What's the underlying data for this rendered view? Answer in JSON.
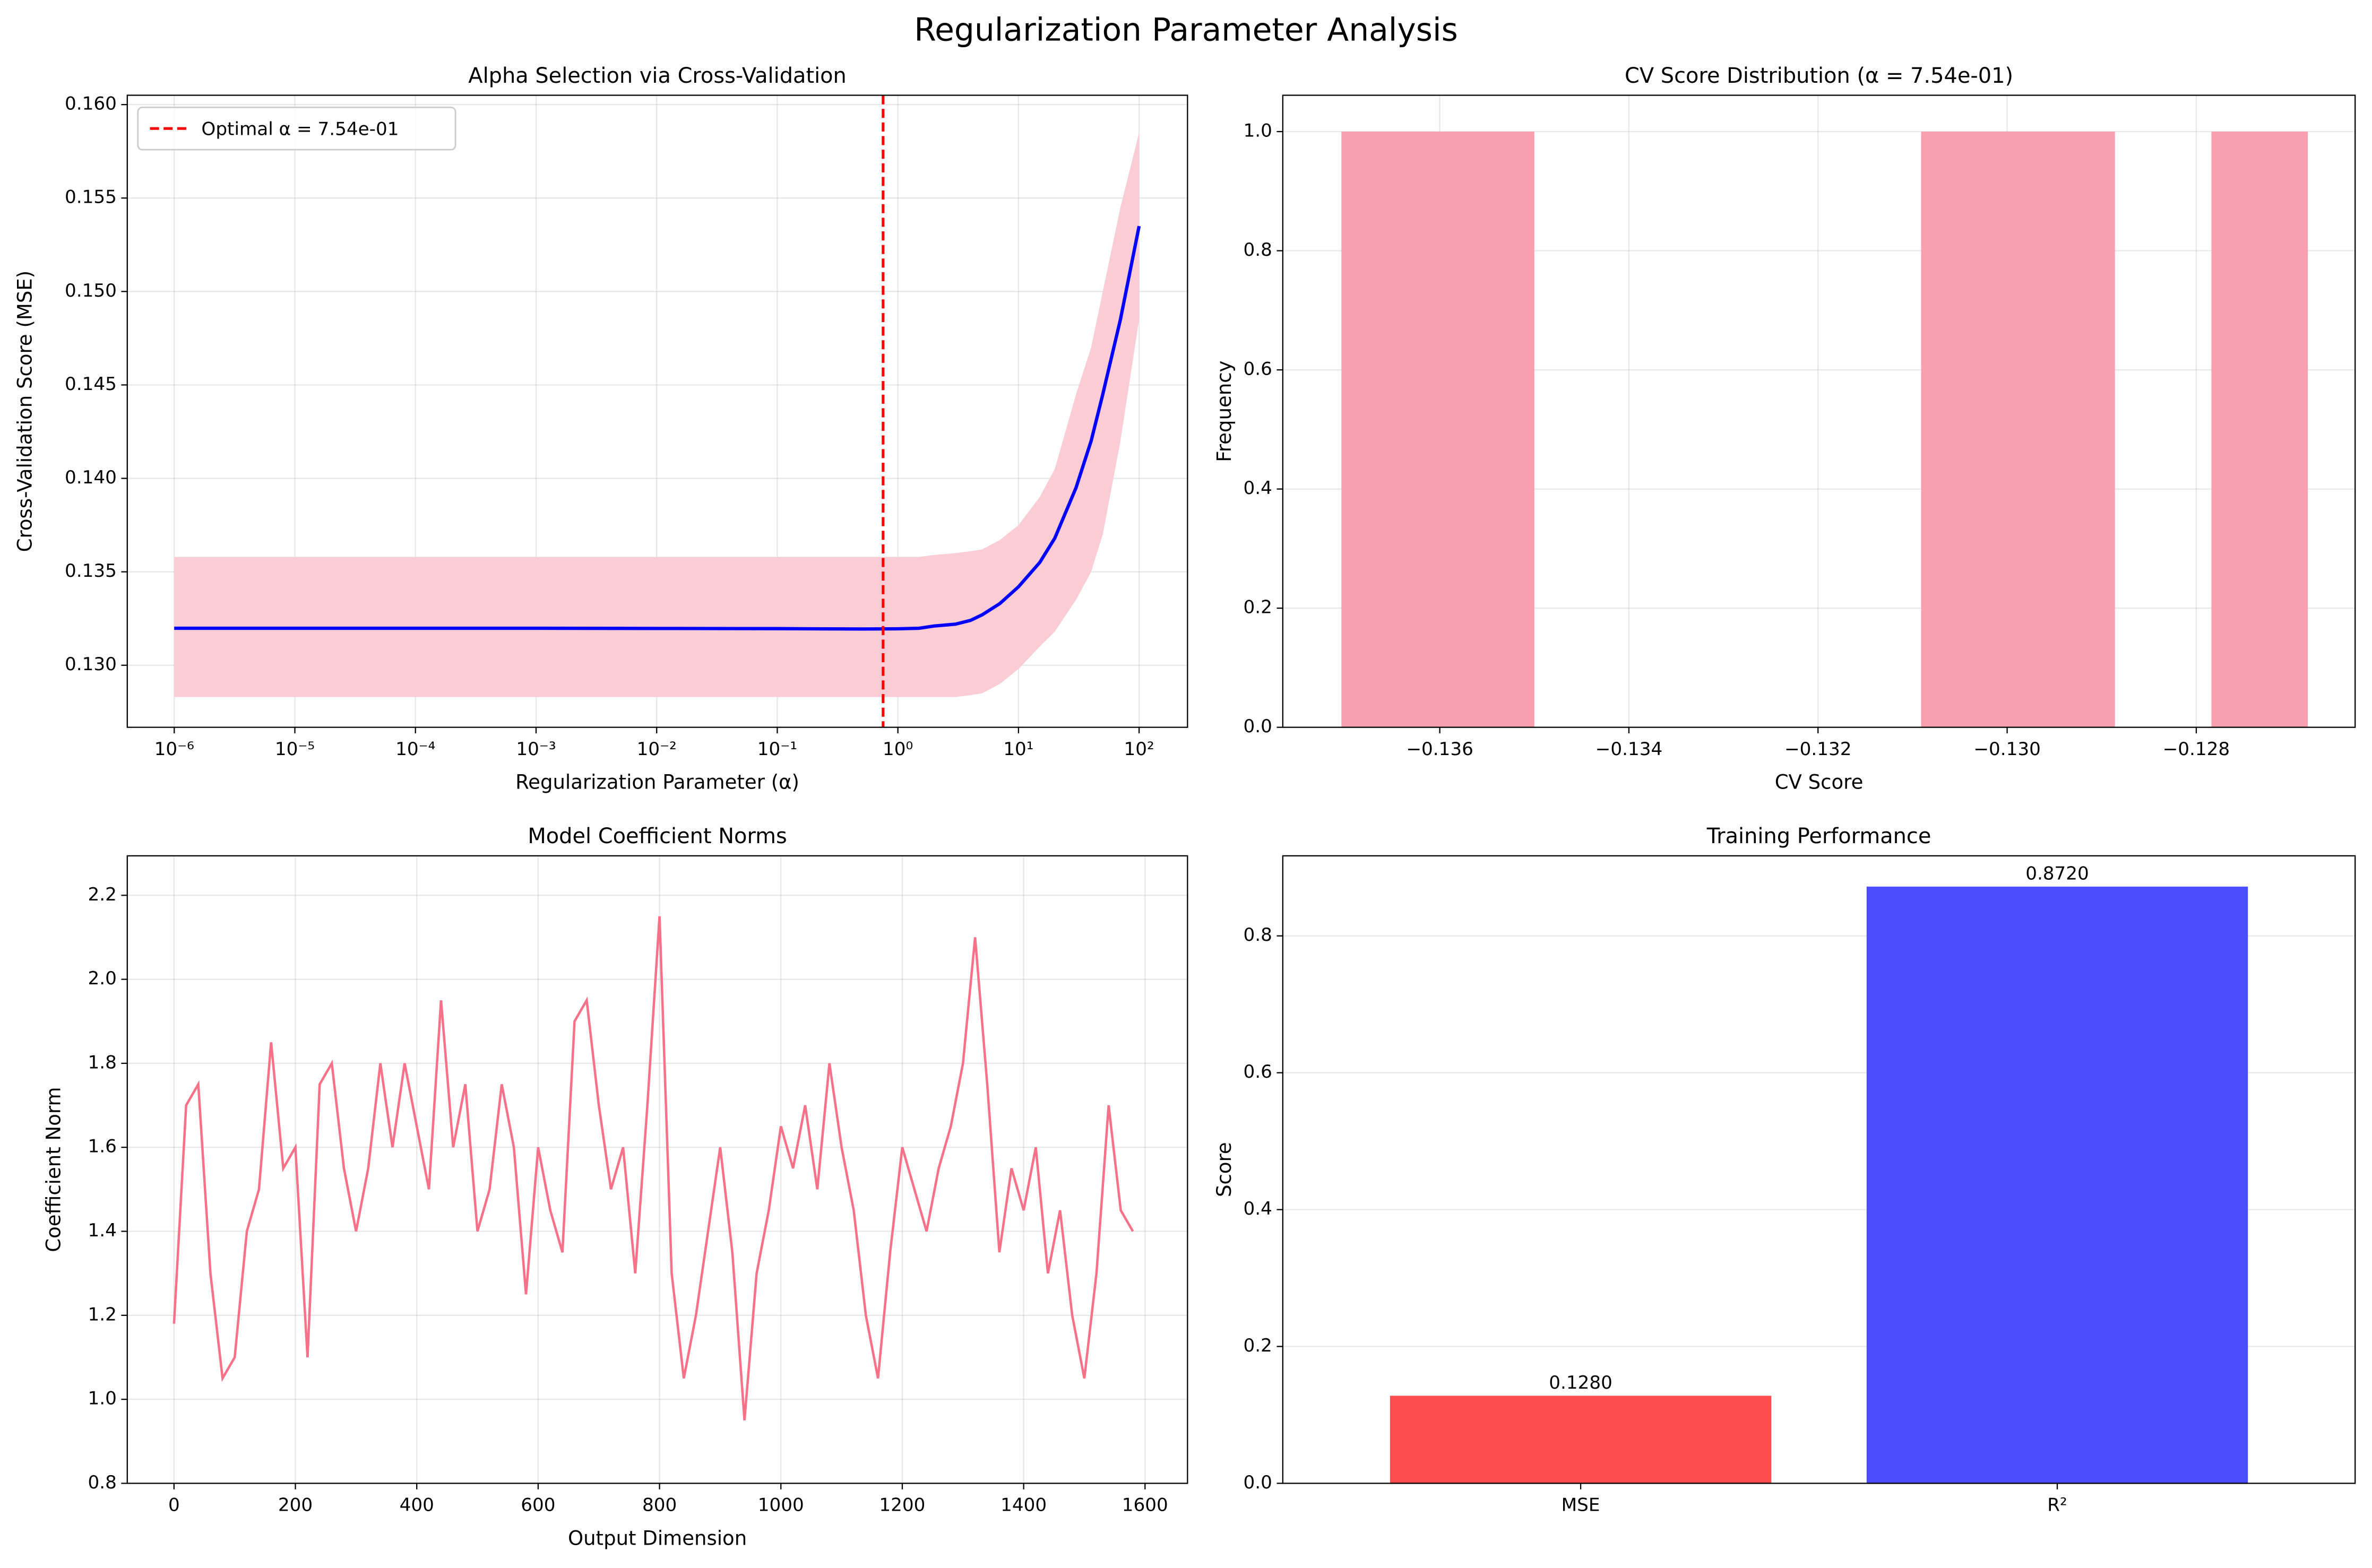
{
  "title": "Regularization Parameter Analysis",
  "chart_data": [
    {
      "type": "line",
      "title": "Alpha Selection via Cross-Validation",
      "xlabel": "Regularization Parameter (α)",
      "ylabel": "Cross-Validation Score (MSE)",
      "xscale": "log",
      "grid": true,
      "x": [
        1e-06,
        1e-05,
        0.0001,
        0.001,
        0.01,
        0.1,
        0.5,
        1,
        1.5,
        2,
        3,
        4,
        5,
        7,
        10,
        15,
        20,
        30,
        40,
        50,
        70,
        100
      ],
      "values": [
        0.13198,
        0.13198,
        0.13198,
        0.13198,
        0.13197,
        0.13196,
        0.13194,
        0.13195,
        0.13198,
        0.1321,
        0.1322,
        0.1324,
        0.1327,
        0.1333,
        0.1342,
        0.1355,
        0.1368,
        0.1395,
        0.142,
        0.1445,
        0.1485,
        0.1535
      ],
      "color": "#0000ff",
      "band": {
        "color": "#f9ccd6",
        "lower": [
          0.1283,
          0.1283,
          0.1283,
          0.1283,
          0.1283,
          0.1283,
          0.1283,
          0.1283,
          0.1283,
          0.1283,
          0.1283,
          0.1284,
          0.1285,
          0.129,
          0.1298,
          0.131,
          0.1318,
          0.1335,
          0.135,
          0.137,
          0.142,
          0.1485
        ],
        "upper": [
          0.1358,
          0.1358,
          0.1358,
          0.1358,
          0.1358,
          0.1358,
          0.1358,
          0.1358,
          0.1358,
          0.1359,
          0.136,
          0.1361,
          0.1362,
          0.1367,
          0.1375,
          0.139,
          0.1405,
          0.1445,
          0.147,
          0.15,
          0.1545,
          0.1585
        ]
      },
      "vline": {
        "x": 0.754,
        "label": "Optimal α = 7.54e-01",
        "color": "#ff0000"
      },
      "legend": "upper left",
      "xlim": [
        4.08e-07,
        252
      ],
      "ylim": [
        0.12668,
        0.1605
      ],
      "xticks": [
        {
          "value": 1e-06,
          "label": "10⁻⁶"
        },
        {
          "value": 1e-05,
          "label": "10⁻⁵"
        },
        {
          "value": 0.0001,
          "label": "10⁻⁴"
        },
        {
          "value": 0.001,
          "label": "10⁻³"
        },
        {
          "value": 0.01,
          "label": "10⁻²"
        },
        {
          "value": 0.1,
          "label": "10⁻¹"
        },
        {
          "value": 1,
          "label": "10⁰"
        },
        {
          "value": 10,
          "label": "10¹"
        },
        {
          "value": 100,
          "label": "10²"
        }
      ],
      "yticks": [
        {
          "value": 0.13,
          "label": "0.130"
        },
        0.135,
        {
          "value": 0.14,
          "label": "0.140"
        },
        0.145,
        {
          "value": 0.15,
          "label": "0.150"
        },
        0.155,
        {
          "value": 0.16,
          "label": "0.160"
        }
      ]
    },
    {
      "type": "histogram",
      "title": "CV Score Distribution (α = 7.54e-01)",
      "xlabel": "CV Score",
      "ylabel": "Frequency",
      "grid": true,
      "color": "#f8a0ae",
      "bins": [
        -0.13704,
        -0.135,
        -0.13295,
        -0.13091,
        -0.12886,
        -0.12784,
        -0.12682
      ],
      "counts": [
        1,
        0,
        0,
        1,
        0,
        1
      ],
      "xlim": [
        -0.13766,
        -0.12632
      ],
      "ylim": [
        0,
        1.061
      ],
      "xticks": [
        {
          "value": -0.136,
          "label": "−0.136"
        },
        {
          "value": -0.134,
          "label": "−0.134"
        },
        {
          "value": -0.132,
          "label": "−0.132"
        },
        {
          "value": -0.13,
          "label": "−0.130"
        },
        {
          "value": -0.128,
          "label": "−0.128"
        }
      ],
      "yticks": [
        {
          "value": 0,
          "label": "0.0"
        },
        0.2,
        0.4,
        0.6,
        0.8,
        {
          "value": 1,
          "label": "1.0"
        }
      ]
    },
    {
      "type": "line",
      "title": "Model Coefficient Norms",
      "xlabel": "Output Dimension",
      "ylabel": "Coefficient Norm",
      "grid": true,
      "color": "#f77189",
      "x": [
        0,
        20,
        40,
        60,
        80,
        100,
        120,
        140,
        160,
        180,
        200,
        220,
        240,
        260,
        280,
        300,
        320,
        340,
        360,
        380,
        400,
        420,
        440,
        460,
        480,
        500,
        520,
        540,
        560,
        580,
        600,
        620,
        640,
        660,
        680,
        700,
        720,
        740,
        760,
        780,
        800,
        820,
        840,
        860,
        880,
        900,
        920,
        940,
        960,
        980,
        1000,
        1020,
        1040,
        1060,
        1080,
        1100,
        1120,
        1140,
        1160,
        1180,
        1200,
        1220,
        1240,
        1260,
        1280,
        1300,
        1320,
        1340,
        1360,
        1380,
        1400,
        1420,
        1440,
        1460,
        1480,
        1500,
        1520,
        1540,
        1560,
        1580
      ],
      "values": [
        1.18,
        1.7,
        1.75,
        1.3,
        1.05,
        1.1,
        1.4,
        1.5,
        1.85,
        1.55,
        1.6,
        1.1,
        1.75,
        1.8,
        1.55,
        1.4,
        1.55,
        1.8,
        1.6,
        1.8,
        1.65,
        1.5,
        1.95,
        1.6,
        1.75,
        1.4,
        1.5,
        1.75,
        1.6,
        1.25,
        1.6,
        1.45,
        1.35,
        1.9,
        1.95,
        1.7,
        1.5,
        1.6,
        1.3,
        1.7,
        2.15,
        1.3,
        1.05,
        1.2,
        1.4,
        1.6,
        1.35,
        0.95,
        1.3,
        1.45,
        1.65,
        1.55,
        1.7,
        1.5,
        1.8,
        1.6,
        1.45,
        1.2,
        1.05,
        1.35,
        1.6,
        1.5,
        1.4,
        1.55,
        1.65,
        1.8,
        2.1,
        1.75,
        1.35,
        1.55,
        1.45,
        1.6,
        1.3,
        1.45,
        1.2,
        1.05,
        1.3,
        1.7,
        1.45,
        1.4
      ],
      "xlim": [
        -77,
        1670
      ],
      "ylim": [
        0.8,
        2.294
      ],
      "xticks": [
        0,
        200,
        400,
        600,
        800,
        1000,
        1200,
        1400,
        1600
      ],
      "yticks": [
        0.8,
        {
          "value": 1,
          "label": "1.0"
        },
        1.2,
        1.4,
        1.6,
        1.8,
        {
          "value": 2,
          "label": "2.0"
        },
        2.2
      ]
    },
    {
      "type": "bar",
      "title": "Training Performance",
      "ylabel": "Score",
      "grid": true,
      "categories": [
        "MSE",
        "R²"
      ],
      "values": [
        0.128,
        0.872
      ],
      "value_labels": [
        "0.1280",
        "0.8720"
      ],
      "colors": [
        "#ff4c4c",
        "#4c4cff"
      ],
      "ylim": [
        0,
        0.917
      ],
      "yticks": [
        {
          "value": 0,
          "label": "0.0"
        },
        0.2,
        0.4,
        0.6,
        0.8
      ]
    }
  ]
}
